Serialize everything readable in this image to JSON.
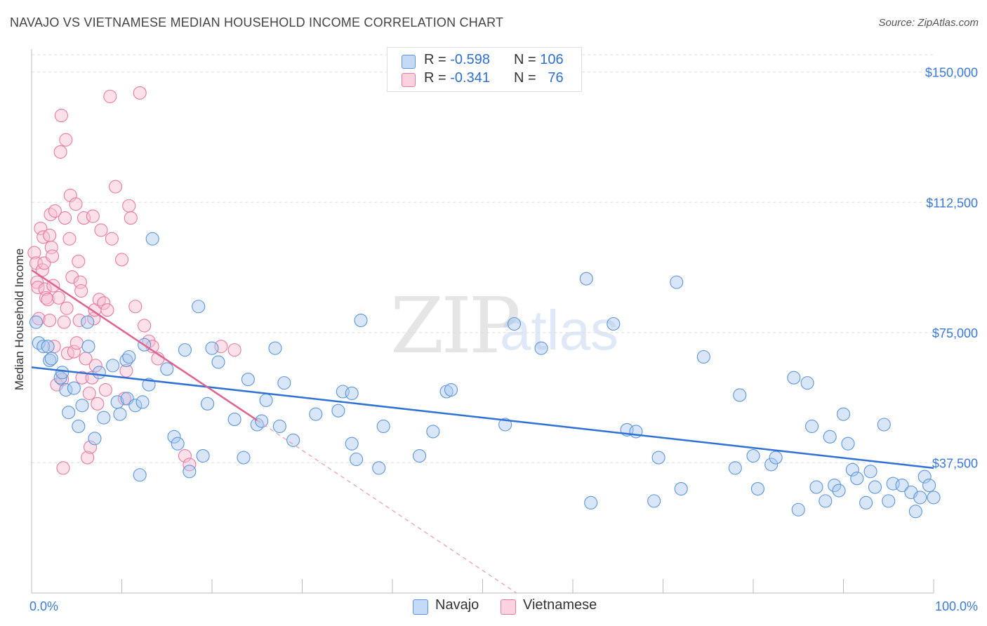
{
  "title": "NAVAJO VS VIETNAMESE MEDIAN HOUSEHOLD INCOME CORRELATION CHART",
  "source": "Source: ZipAtlas.com",
  "watermark": {
    "zip": "ZIP",
    "atlas": "atlas"
  },
  "legend": {
    "rows": [
      {
        "r_label": "R =",
        "r_value": "-0.598",
        "n_label": "N =",
        "n_value": "106",
        "color": "#a8c8f0"
      },
      {
        "r_label": "R =",
        "r_value": "-0.341",
        "n_label": "N =",
        "n_value": "76",
        "color": "#f8bcd0"
      }
    ]
  },
  "bottom_legend": [
    {
      "label": "Navajo",
      "color": "#a8c8f0"
    },
    {
      "label": "Vietnamese",
      "color": "#f8bcd0"
    }
  ],
  "chart_data": {
    "type": "scatter",
    "title": "NAVAJO VS VIETNAMESE MEDIAN HOUSEHOLD INCOME CORRELATION CHART",
    "xlabel": "",
    "ylabel": "Median Household Income",
    "xlim": [
      0,
      100
    ],
    "ylim": [
      0,
      155000
    ],
    "x_tick_labels": [
      "0.0%",
      "100.0%"
    ],
    "y_ticks": [
      37500,
      75000,
      112500,
      150000
    ],
    "y_tick_labels": [
      "$37,500",
      "$75,000",
      "$112,500",
      "$150,000"
    ],
    "grid": true,
    "legend_position": "top-center",
    "series": [
      {
        "name": "Navajo",
        "color": "#5b95dc",
        "fill": "#a8c8f0",
        "trend": {
          "x0": 0,
          "y0": 65000,
          "x1": 100,
          "y1": 36000,
          "style": "solid"
        },
        "points": [
          [
            0.5,
            78000
          ],
          [
            0.8,
            72000
          ],
          [
            1.3,
            71000
          ],
          [
            1.8,
            71000
          ],
          [
            2.0,
            67000
          ],
          [
            2.2,
            67500
          ],
          [
            3.2,
            62000
          ],
          [
            3.4,
            63500
          ],
          [
            3.8,
            58500
          ],
          [
            4.1,
            52000
          ],
          [
            4.7,
            59000
          ],
          [
            5.2,
            48000
          ],
          [
            5.6,
            54000
          ],
          [
            6.2,
            78000
          ],
          [
            6.3,
            71000
          ],
          [
            7.0,
            44500
          ],
          [
            7.5,
            63500
          ],
          [
            8.0,
            50500
          ],
          [
            9.0,
            65500
          ],
          [
            9.5,
            55000
          ],
          [
            9.8,
            51500
          ],
          [
            10.5,
            67000
          ],
          [
            10.6,
            56000
          ],
          [
            10.8,
            68000
          ],
          [
            11.5,
            54000
          ],
          [
            12.0,
            34000
          ],
          [
            12.3,
            55000
          ],
          [
            12.5,
            71500
          ],
          [
            13.0,
            60000
          ],
          [
            13.4,
            102000
          ],
          [
            15.0,
            64500
          ],
          [
            15.8,
            45000
          ],
          [
            16.2,
            43000
          ],
          [
            17.0,
            70000
          ],
          [
            17.5,
            35000
          ],
          [
            18.5,
            82500
          ],
          [
            19.0,
            39500
          ],
          [
            19.5,
            54500
          ],
          [
            20.0,
            70500
          ],
          [
            20.7,
            66500
          ],
          [
            22.5,
            50000
          ],
          [
            23.5,
            39000
          ],
          [
            24.0,
            61500
          ],
          [
            25.0,
            48500
          ],
          [
            25.5,
            49500
          ],
          [
            26.0,
            55500
          ],
          [
            27.0,
            70500
          ],
          [
            27.5,
            48000
          ],
          [
            28.0,
            60500
          ],
          [
            29.0,
            44000
          ],
          [
            31.5,
            51500
          ],
          [
            34.0,
            52500
          ],
          [
            34.5,
            58000
          ],
          [
            35.5,
            57500
          ],
          [
            35.5,
            43000
          ],
          [
            36.0,
            38500
          ],
          [
            36.5,
            78500
          ],
          [
            38.5,
            36000
          ],
          [
            39.0,
            48000
          ],
          [
            43.0,
            39500
          ],
          [
            44.5,
            46500
          ],
          [
            46.0,
            58000
          ],
          [
            46.5,
            58500
          ],
          [
            52.5,
            48500
          ],
          [
            53.5,
            77500
          ],
          [
            56.5,
            70500
          ],
          [
            61.5,
            90500
          ],
          [
            62.0,
            26000
          ],
          [
            64.5,
            77500
          ],
          [
            66.0,
            47000
          ],
          [
            67.0,
            46500
          ],
          [
            69.0,
            26500
          ],
          [
            69.5,
            39000
          ],
          [
            71.5,
            89500
          ],
          [
            72.0,
            30000
          ],
          [
            74.5,
            68000
          ],
          [
            78.0,
            36000
          ],
          [
            78.5,
            57000
          ],
          [
            80.0,
            39500
          ],
          [
            80.5,
            30000
          ],
          [
            82.0,
            37000
          ],
          [
            82.5,
            39000
          ],
          [
            84.5,
            62000
          ],
          [
            85.0,
            24000
          ],
          [
            86.0,
            60500
          ],
          [
            86.5,
            48000
          ],
          [
            87.0,
            30500
          ],
          [
            88.0,
            26500
          ],
          [
            88.5,
            45000
          ],
          [
            89.0,
            31000
          ],
          [
            89.5,
            29500
          ],
          [
            90.0,
            51500
          ],
          [
            90.5,
            43000
          ],
          [
            91.0,
            35500
          ],
          [
            91.5,
            33000
          ],
          [
            92.5,
            26000
          ],
          [
            93.0,
            35000
          ],
          [
            93.5,
            30500
          ],
          [
            94.5,
            48500
          ],
          [
            95.0,
            26500
          ],
          [
            95.5,
            31500
          ],
          [
            96.5,
            31000
          ],
          [
            97.5,
            29000
          ],
          [
            98.0,
            23500
          ],
          [
            98.5,
            27500
          ],
          [
            99.0,
            33500
          ],
          [
            99.5,
            31000
          ],
          [
            100.0,
            27500
          ]
        ]
      },
      {
        "name": "Vietnamese",
        "color": "#e87aa0",
        "fill": "#f8bcd0",
        "trend": {
          "x0": 0,
          "y0": 93000,
          "x1": 100,
          "y1": -80000,
          "solid_until_x": 25,
          "style": "solid-then-dashed"
        },
        "points": [
          [
            0.3,
            98000
          ],
          [
            0.5,
            95000
          ],
          [
            0.6,
            89500
          ],
          [
            0.7,
            88000
          ],
          [
            0.8,
            79000
          ],
          [
            1.0,
            105000
          ],
          [
            1.2,
            93000
          ],
          [
            1.3,
            102500
          ],
          [
            1.4,
            95000
          ],
          [
            1.5,
            87500
          ],
          [
            1.6,
            85000
          ],
          [
            1.8,
            84500
          ],
          [
            2.0,
            103000
          ],
          [
            2.0,
            78500
          ],
          [
            2.1,
            109000
          ],
          [
            2.2,
            99500
          ],
          [
            2.3,
            97000
          ],
          [
            2.4,
            88500
          ],
          [
            2.5,
            71000
          ],
          [
            2.6,
            110000
          ],
          [
            2.8,
            60000
          ],
          [
            3.0,
            85000
          ],
          [
            3.2,
            127000
          ],
          [
            3.3,
            137500
          ],
          [
            3.4,
            61500
          ],
          [
            3.5,
            36000
          ],
          [
            3.6,
            78000
          ],
          [
            3.7,
            108000
          ],
          [
            3.8,
            130500
          ],
          [
            3.9,
            82000
          ],
          [
            4.0,
            69000
          ],
          [
            4.2,
            102000
          ],
          [
            4.3,
            114500
          ],
          [
            4.5,
            91000
          ],
          [
            4.7,
            69500
          ],
          [
            4.9,
            112000
          ],
          [
            5.0,
            72000
          ],
          [
            5.2,
            95500
          ],
          [
            5.3,
            78500
          ],
          [
            5.4,
            89500
          ],
          [
            5.5,
            87000
          ],
          [
            5.6,
            62000
          ],
          [
            5.8,
            108000
          ],
          [
            6.0,
            67500
          ],
          [
            6.2,
            39000
          ],
          [
            6.4,
            57500
          ],
          [
            6.5,
            42000
          ],
          [
            6.7,
            62000
          ],
          [
            6.8,
            108500
          ],
          [
            6.9,
            79000
          ],
          [
            7.0,
            81500
          ],
          [
            7.1,
            65500
          ],
          [
            7.3,
            54500
          ],
          [
            7.5,
            84500
          ],
          [
            7.7,
            104500
          ],
          [
            8.0,
            83500
          ],
          [
            8.2,
            58500
          ],
          [
            8.4,
            81500
          ],
          [
            8.7,
            143000
          ],
          [
            8.9,
            102000
          ],
          [
            9.3,
            117000
          ],
          [
            10.0,
            96000
          ],
          [
            10.3,
            56000
          ],
          [
            10.5,
            64000
          ],
          [
            10.8,
            111500
          ],
          [
            11.0,
            108000
          ],
          [
            11.5,
            82500
          ],
          [
            12.0,
            144000
          ],
          [
            12.5,
            77000
          ],
          [
            13.0,
            72500
          ],
          [
            13.4,
            71000
          ],
          [
            14.0,
            67500
          ],
          [
            17.0,
            39500
          ],
          [
            17.5,
            37000
          ],
          [
            21.0,
            71000
          ],
          [
            22.5,
            70000
          ]
        ]
      }
    ]
  }
}
